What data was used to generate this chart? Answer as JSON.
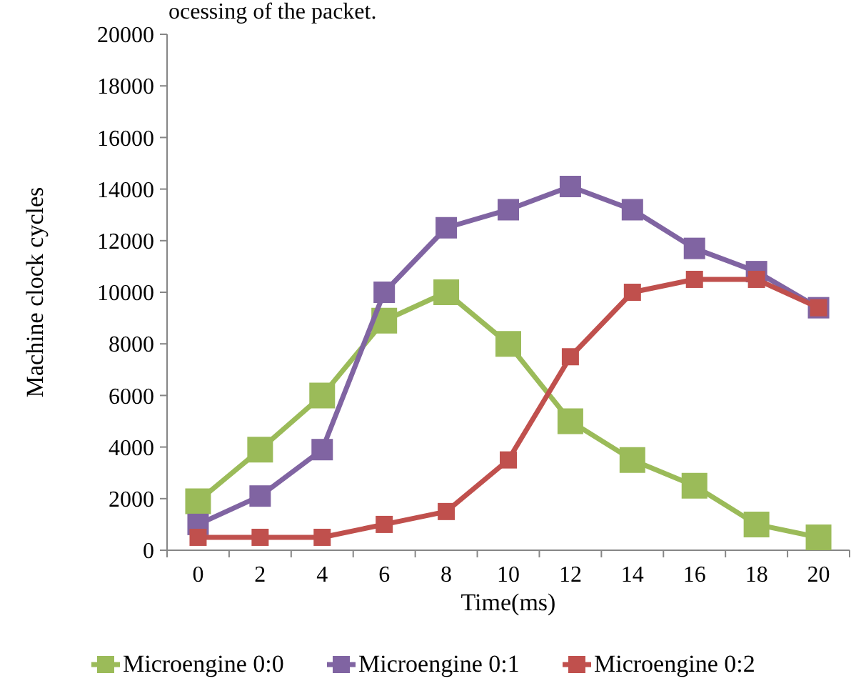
{
  "chart_data": {
    "type": "line",
    "xlabel": "Time(ms)",
    "ylabel": "Machine clock cycles",
    "annotations": [
      "ocessing of the packet."
    ],
    "categories": [
      "0",
      "2",
      "4",
      "6",
      "8",
      "10",
      "12",
      "14",
      "16",
      "18",
      "20"
    ],
    "ylim": [
      0,
      20000
    ],
    "yticks": [
      0,
      2000,
      4000,
      6000,
      8000,
      10000,
      12000,
      14000,
      16000,
      18000,
      20000
    ],
    "grid": false,
    "legend": "bottom",
    "marker": "square",
    "line_style": "solid",
    "series": [
      {
        "name": "Microengine 0:0",
        "color": "#9bbb59",
        "values": [
          1900,
          3900,
          6000,
          8900,
          10000,
          8000,
          5000,
          3500,
          2500,
          1000,
          500
        ]
      },
      {
        "name": "Microengine 0:1",
        "color": "#8064a2",
        "values": [
          1000,
          2100,
          3900,
          10000,
          12500,
          13200,
          14100,
          13200,
          11700,
          10800,
          9400
        ]
      },
      {
        "name": "Microengine 0:2",
        "color": "#c0504d",
        "values": [
          500,
          500,
          500,
          1000,
          1500,
          3500,
          7500,
          10000,
          10500,
          10500,
          9400
        ]
      }
    ]
  }
}
